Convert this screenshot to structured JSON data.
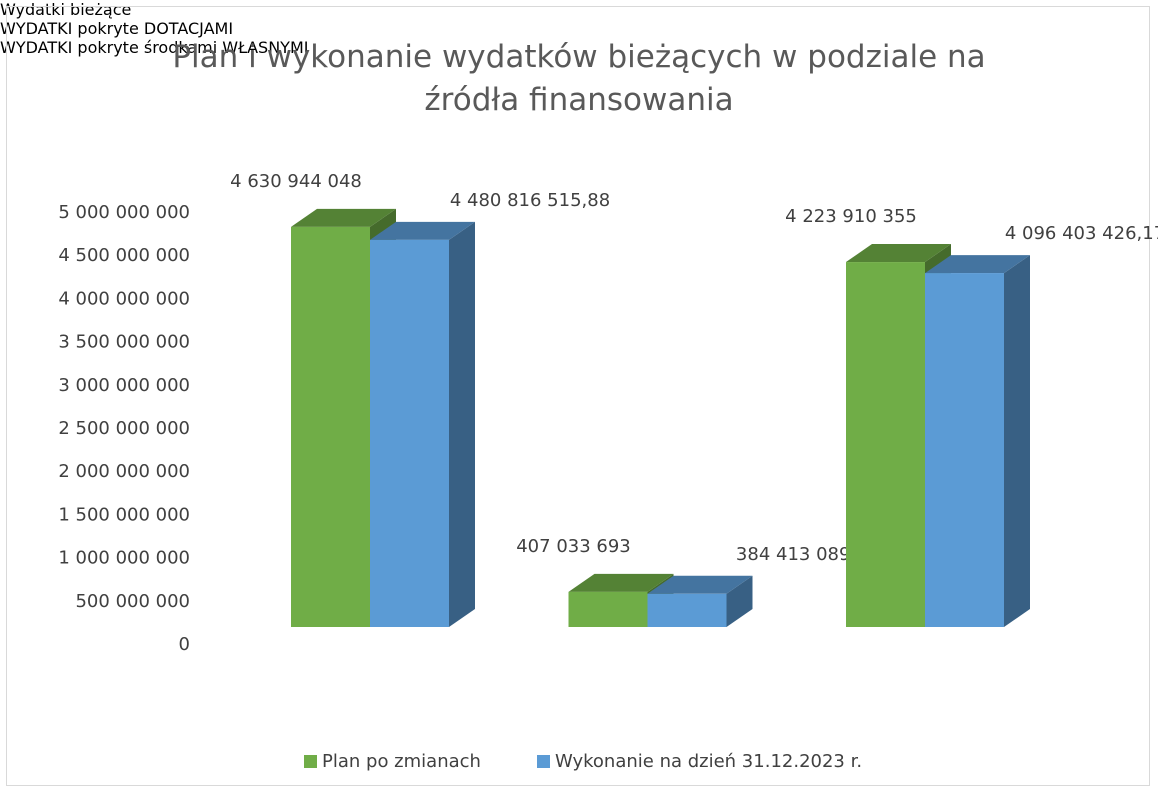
{
  "chart_data": {
    "type": "bar3d",
    "title": "Plan i wykonanie wydatków bieżących w podziale na źródła finansowania",
    "categories": [
      "Wydatki bieżące",
      "WYDATKI pokryte DOTACJAMI",
      "WYDATKI pokryte środkami WŁASNYMI"
    ],
    "series": [
      {
        "name": "Plan po zmianach",
        "color": "#70ad47",
        "values": [
          4630944048,
          407033693,
          4223910355
        ],
        "value_labels": [
          "4 630 944 048",
          "407 033 693",
          "4 223 910 355"
        ]
      },
      {
        "name": "Wykonanie na dzień 31.12.2023 r.",
        "color": "#5b9bd5",
        "values": [
          4480816515.88,
          384413089.71,
          4096403426.17
        ],
        "value_labels": [
          "4 480 816 515,88",
          "384 413 089,71",
          "4 096 403 426,17"
        ]
      }
    ],
    "ylim": [
      0,
      5000000000
    ],
    "yticks": [
      {
        "value": 0,
        "label": "0"
      },
      {
        "value": 500000000,
        "label": "500 000 000"
      },
      {
        "value": 1000000000,
        "label": "1 000 000 000"
      },
      {
        "value": 1500000000,
        "label": "1 500 000 000"
      },
      {
        "value": 2000000000,
        "label": "2 000 000 000"
      },
      {
        "value": 2500000000,
        "label": "2 500 000 000"
      },
      {
        "value": 3000000000,
        "label": "3 000 000 000"
      },
      {
        "value": 3500000000,
        "label": "3 500 000 000"
      },
      {
        "value": 4000000000,
        "label": "4 000 000 000"
      },
      {
        "value": 4500000000,
        "label": "4 500 000 000"
      },
      {
        "value": 5000000000,
        "label": "5 000 000 000"
      }
    ],
    "grid": false,
    "legend": "bottom"
  }
}
